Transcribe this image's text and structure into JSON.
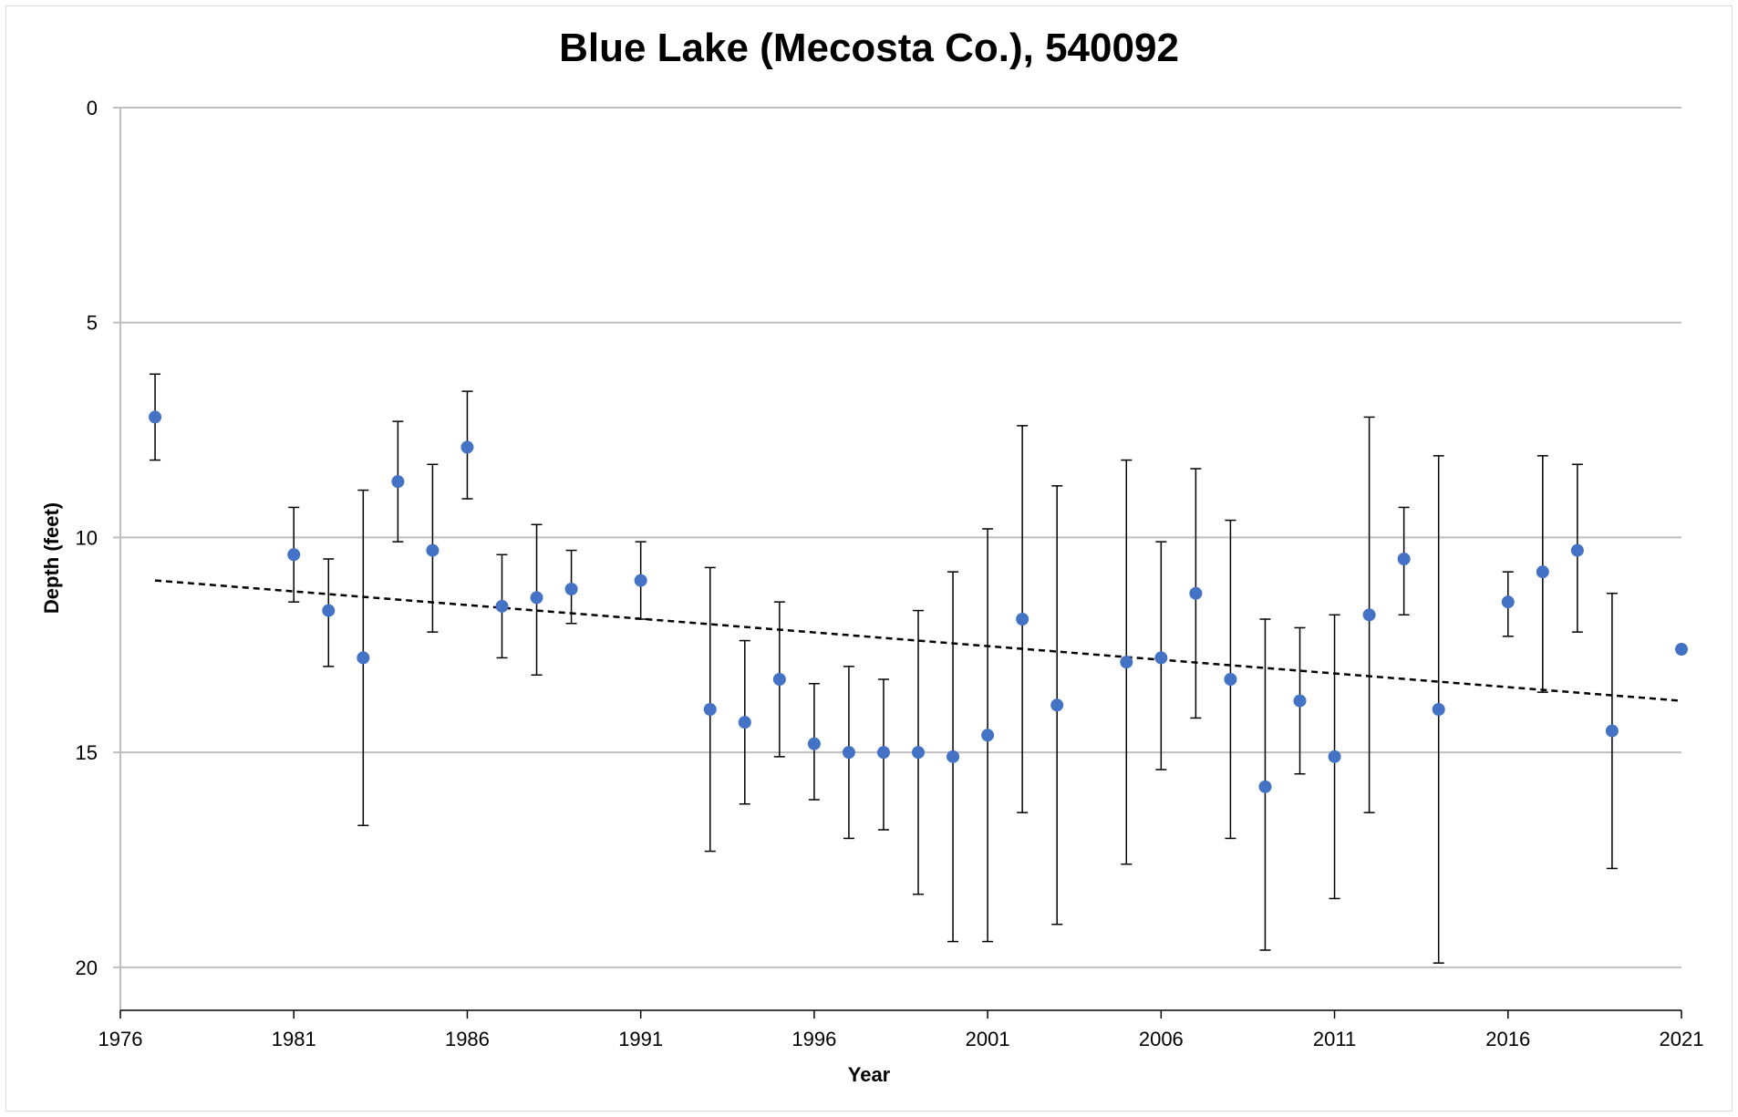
{
  "chart_data": {
    "type": "scatter",
    "title": "Blue Lake (Mecosta Co.), 540092",
    "xlabel": "Year",
    "ylabel": "Depth (feet)",
    "xlim": [
      1976,
      2021
    ],
    "ylim": [
      0,
      21
    ],
    "y_axis_reversed": true,
    "x_ticks": [
      "1976",
      "1981",
      "1986",
      "1991",
      "1996",
      "2001",
      "2006",
      "2011",
      "2016",
      "2021"
    ],
    "y_ticks": [
      "0",
      "5",
      "10",
      "15",
      "20"
    ],
    "grid": "horizontal",
    "legend": "none",
    "marker_color": "#4472c4",
    "trendline": {
      "style": "dashed",
      "color": "#000000",
      "points": [
        [
          1977,
          11.0
        ],
        [
          2021,
          13.8
        ]
      ]
    },
    "points": [
      {
        "x": 1977,
        "y": 7.2,
        "low": 6.2,
        "high": 8.2
      },
      {
        "x": 1981,
        "y": 10.4,
        "low": 9.3,
        "high": 11.5
      },
      {
        "x": 1982,
        "y": 11.7,
        "low": 10.5,
        "high": 13.0
      },
      {
        "x": 1983,
        "y": 12.8,
        "low": 8.9,
        "high": 16.7
      },
      {
        "x": 1984,
        "y": 8.7,
        "low": 7.3,
        "high": 10.1
      },
      {
        "x": 1985,
        "y": 10.3,
        "low": 8.3,
        "high": 12.2
      },
      {
        "x": 1986,
        "y": 7.9,
        "low": 6.6,
        "high": 9.1
      },
      {
        "x": 1987,
        "y": 11.6,
        "low": 10.4,
        "high": 12.8
      },
      {
        "x": 1988,
        "y": 11.4,
        "low": 9.7,
        "high": 13.2
      },
      {
        "x": 1989,
        "y": 11.2,
        "low": 10.3,
        "high": 12.0
      },
      {
        "x": 1991,
        "y": 11.0,
        "low": 10.1,
        "high": 11.9
      },
      {
        "x": 1993,
        "y": 14.0,
        "low": 10.7,
        "high": 17.3
      },
      {
        "x": 1994,
        "y": 14.3,
        "low": 12.4,
        "high": 16.2
      },
      {
        "x": 1995,
        "y": 13.3,
        "low": 11.5,
        "high": 15.1
      },
      {
        "x": 1996,
        "y": 14.8,
        "low": 13.4,
        "high": 16.1
      },
      {
        "x": 1997,
        "y": 15.0,
        "low": 13.0,
        "high": 17.0
      },
      {
        "x": 1998,
        "y": 15.0,
        "low": 13.3,
        "high": 16.8
      },
      {
        "x": 1999,
        "y": 15.0,
        "low": 11.7,
        "high": 18.3
      },
      {
        "x": 2000,
        "y": 15.1,
        "low": 10.8,
        "high": 19.4
      },
      {
        "x": 2001,
        "y": 14.6,
        "low": 9.8,
        "high": 19.4
      },
      {
        "x": 2002,
        "y": 11.9,
        "low": 7.4,
        "high": 16.4
      },
      {
        "x": 2003,
        "y": 13.9,
        "low": 8.8,
        "high": 19.0
      },
      {
        "x": 2005,
        "y": 12.9,
        "low": 8.2,
        "high": 17.6
      },
      {
        "x": 2006,
        "y": 12.8,
        "low": 10.1,
        "high": 15.4
      },
      {
        "x": 2007,
        "y": 11.3,
        "low": 8.4,
        "high": 14.2
      },
      {
        "x": 2008,
        "y": 13.3,
        "low": 9.6,
        "high": 17.0
      },
      {
        "x": 2009,
        "y": 15.8,
        "low": 11.9,
        "high": 19.6
      },
      {
        "x": 2010,
        "y": 13.8,
        "low": 12.1,
        "high": 15.5
      },
      {
        "x": 2011,
        "y": 15.1,
        "low": 11.8,
        "high": 18.4
      },
      {
        "x": 2012,
        "y": 11.8,
        "low": 7.2,
        "high": 16.4
      },
      {
        "x": 2013,
        "y": 10.5,
        "low": 9.3,
        "high": 11.8
      },
      {
        "x": 2014,
        "y": 14.0,
        "low": 8.1,
        "high": 19.9
      },
      {
        "x": 2016,
        "y": 11.5,
        "low": 10.8,
        "high": 12.3
      },
      {
        "x": 2017,
        "y": 10.8,
        "low": 8.1,
        "high": 13.6
      },
      {
        "x": 2018,
        "y": 10.3,
        "low": 8.3,
        "high": 12.2
      },
      {
        "x": 2019,
        "y": 14.5,
        "low": 11.3,
        "high": 17.7
      },
      {
        "x": 2021,
        "y": 12.6
      }
    ]
  }
}
